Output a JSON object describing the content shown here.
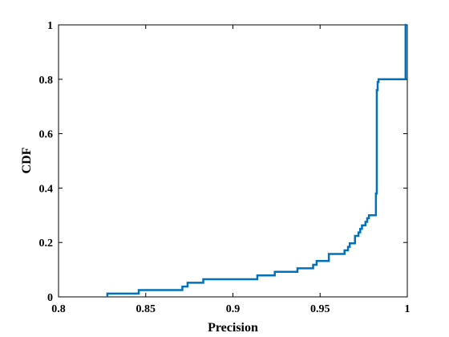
{
  "chart_data": {
    "type": "line",
    "title": "",
    "xlabel": "Precision",
    "ylabel": "CDF",
    "xlim": [
      0.8,
      1.0
    ],
    "ylim": [
      0,
      1
    ],
    "x_ticks": [
      0.8,
      0.85,
      0.9,
      0.95,
      1.0
    ],
    "x_tick_labels": [
      "0.8",
      "0.85",
      "0.9",
      "0.95",
      "1"
    ],
    "y_ticks": [
      0,
      0.2,
      0.4,
      0.6,
      0.8,
      1.0
    ],
    "y_tick_labels": [
      "0",
      "0.2",
      "0.4",
      "0.6",
      "0.8",
      "1"
    ],
    "grid": false,
    "legend": "none",
    "step": true,
    "series": [
      {
        "color": "#0072BD",
        "x": [
          0.828,
          0.828,
          0.846,
          0.846,
          0.871,
          0.871,
          0.874,
          0.874,
          0.883,
          0.883,
          0.914,
          0.914,
          0.924,
          0.924,
          0.937,
          0.937,
          0.946,
          0.946,
          0.948,
          0.948,
          0.95,
          0.95,
          0.955,
          0.955,
          0.964,
          0.964,
          0.966,
          0.966,
          0.967,
          0.967,
          0.97,
          0.97,
          0.972,
          0.972,
          0.973,
          0.973,
          0.974,
          0.974,
          0.976,
          0.976,
          0.977,
          0.977,
          0.978,
          0.978,
          0.979,
          0.979,
          0.9795,
          0.9795,
          0.982,
          0.982,
          0.9825,
          0.9825,
          0.983,
          0.983,
          0.9835,
          0.9835,
          0.999,
          0.999,
          0.9995
        ],
        "y": [
          0,
          0.012,
          0.012,
          0.025,
          0.025,
          0.038,
          0.038,
          0.052,
          0.052,
          0.065,
          0.065,
          0.079,
          0.079,
          0.092,
          0.092,
          0.105,
          0.105,
          0.118,
          0.118,
          0.132,
          0.132,
          0.132,
          0.132,
          0.158,
          0.158,
          0.171,
          0.171,
          0.184,
          0.184,
          0.197,
          0.197,
          0.224,
          0.224,
          0.237,
          0.237,
          0.25,
          0.25,
          0.263,
          0.263,
          0.276,
          0.276,
          0.289,
          0.289,
          0.3,
          0.3,
          0.3,
          0.3,
          0.3,
          0.3,
          0.38,
          0.38,
          0.76,
          0.76,
          0.79,
          0.79,
          0.8,
          0.8,
          1.0,
          1.0
        ]
      }
    ]
  }
}
